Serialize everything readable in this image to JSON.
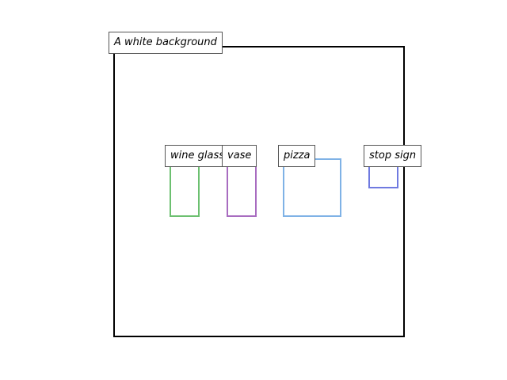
{
  "scene": {
    "caption": "A white background",
    "frame_color": "#000000",
    "objects": [
      {
        "label": "wine glass",
        "color": "#6cc070"
      },
      {
        "label": "vase",
        "color": "#a86cc0"
      },
      {
        "label": "pizza",
        "color": "#7fb2e6"
      },
      {
        "label": "stop sign",
        "color": "#6f7ae0"
      }
    ]
  }
}
